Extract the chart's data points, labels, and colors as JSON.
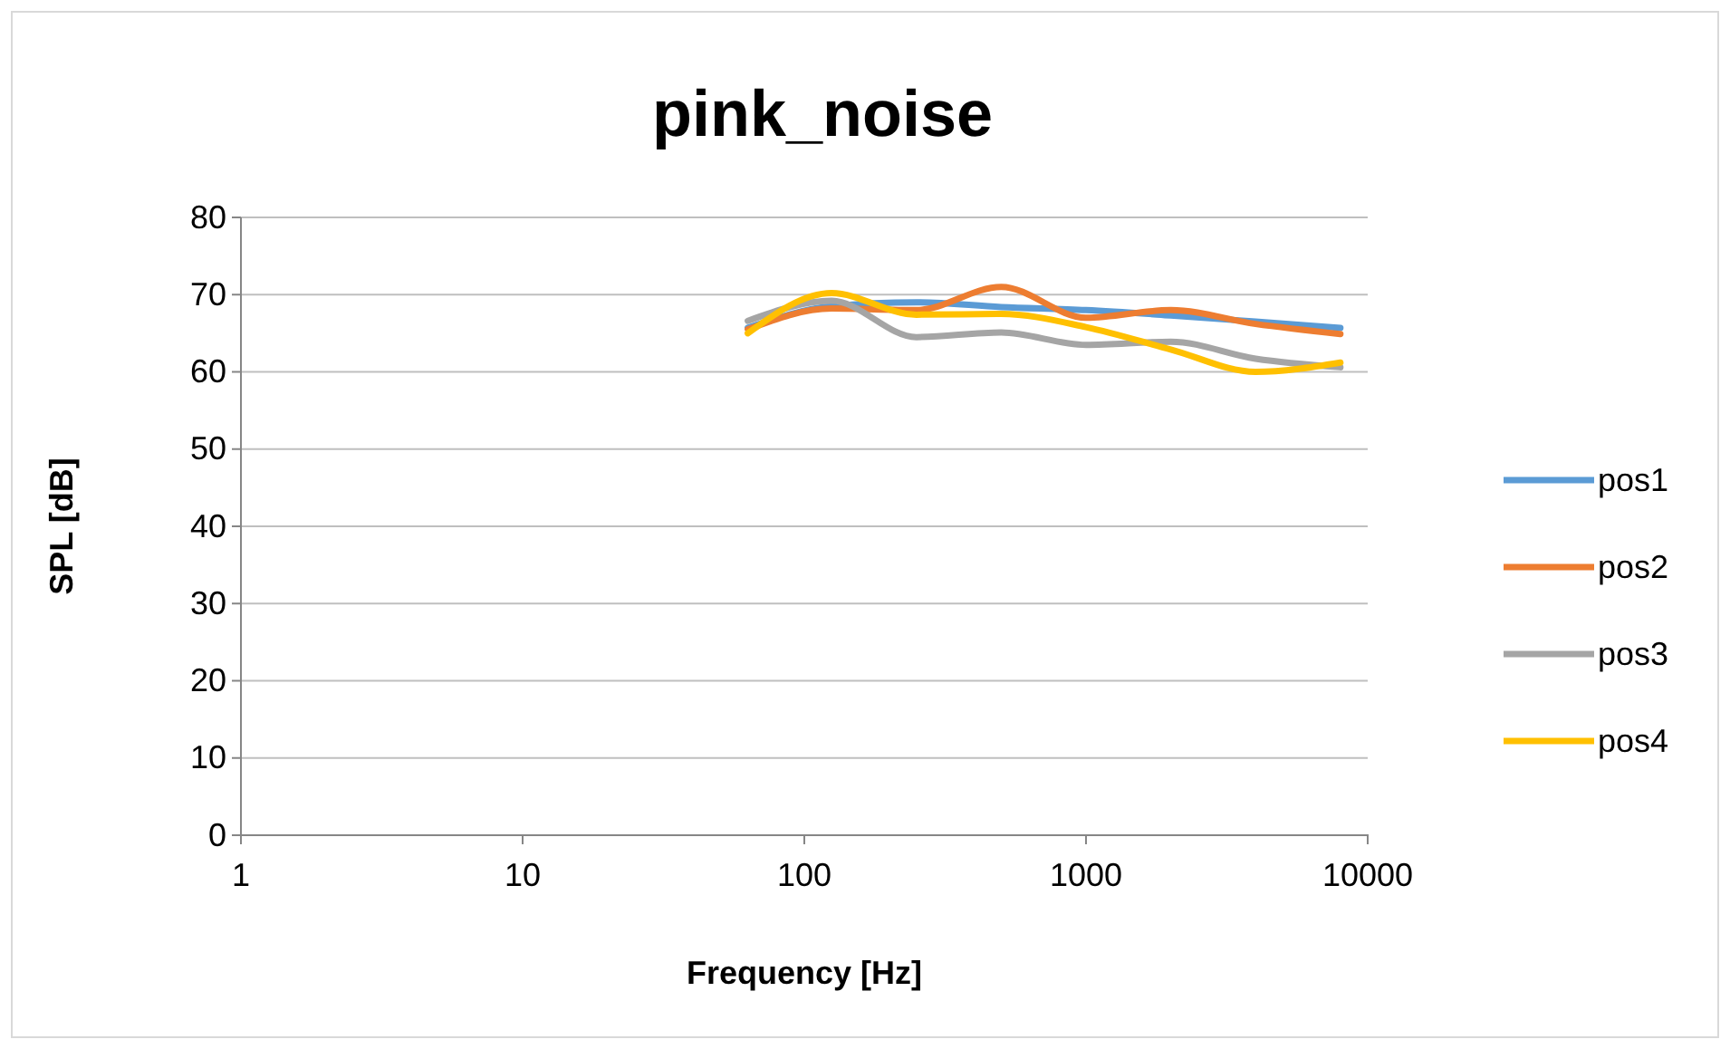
{
  "chart_data": {
    "type": "line",
    "title": "pink_noise",
    "xlabel": "Frequency [Hz]",
    "ylabel": "SPL [dB]",
    "log": "x",
    "x": [
      63,
      125,
      250,
      500,
      1000,
      2000,
      4000,
      8000
    ],
    "xlim": [
      1,
      10000
    ],
    "xticks": [
      1,
      10,
      100,
      1000,
      10000
    ],
    "ylim": [
      0,
      80
    ],
    "yticks": [
      0,
      10,
      20,
      30,
      40,
      50,
      60,
      70,
      80
    ],
    "grid": "y",
    "legend": "right",
    "marker": "none",
    "line_style": "solid",
    "series": [
      {
        "name": "pos1",
        "color": "#5b9bd5",
        "values": [
          65.7,
          68.5,
          69,
          68.4,
          68,
          67.3,
          66.5,
          65.7
        ]
      },
      {
        "name": "pos2",
        "color": "#ed7d31",
        "values": [
          65.5,
          68.2,
          68,
          71,
          67,
          68,
          66.2,
          64.9
        ]
      },
      {
        "name": "pos3",
        "color": "#a5a5a5",
        "values": [
          66.6,
          69.2,
          64.5,
          65.1,
          63.5,
          63.9,
          61.7,
          60.6
        ]
      },
      {
        "name": "pos4",
        "color": "#ffc000",
        "values": [
          65,
          70.2,
          67.4,
          67.5,
          65.8,
          62.9,
          60,
          61.2
        ]
      }
    ]
  }
}
